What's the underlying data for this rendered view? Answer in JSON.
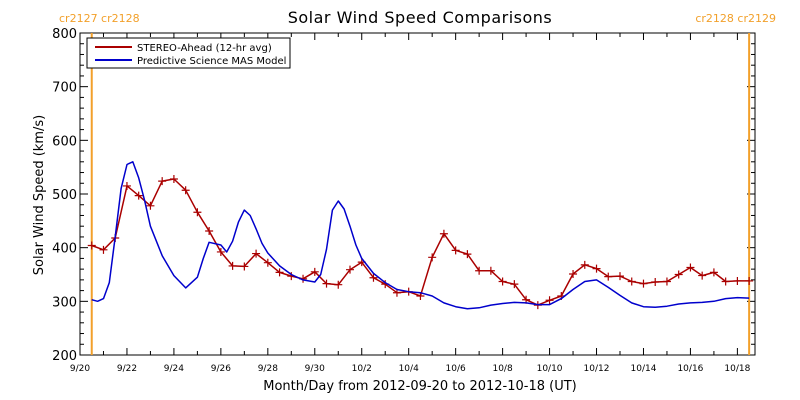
{
  "chart_data": {
    "type": "line",
    "title": "Solar Wind Speed Comparisons",
    "xlabel": "Month/Day from 2012-09-20 to 2012-10-18 (UT)",
    "ylabel": "Solar Wind Speed (km/s)",
    "xlim": [
      "2012-09-20",
      "2012-10-18 18:00"
    ],
    "ylim": [
      200,
      800
    ],
    "y_ticks": [
      "200",
      "300",
      "400",
      "500",
      "600",
      "700",
      "800"
    ],
    "x_ticks": [
      {
        "date": "2012-09-20",
        "label": "9/20"
      },
      {
        "date": "2012-09-22",
        "label": "9/22"
      },
      {
        "date": "2012-09-24",
        "label": "9/24"
      },
      {
        "date": "2012-09-26",
        "label": "9/26"
      },
      {
        "date": "2012-09-28",
        "label": "9/28"
      },
      {
        "date": "2012-09-30",
        "label": "9/30"
      },
      {
        "date": "2012-10-02",
        "label": "10/2"
      },
      {
        "date": "2012-10-04",
        "label": "10/4"
      },
      {
        "date": "2012-10-06",
        "label": "10/6"
      },
      {
        "date": "2012-10-08",
        "label": "10/8"
      },
      {
        "date": "2012-10-10",
        "label": "10/10"
      },
      {
        "date": "2012-10-12",
        "label": "10/12"
      },
      {
        "date": "2012-10-14",
        "label": "10/14"
      },
      {
        "date": "2012-10-16",
        "label": "10/16"
      },
      {
        "date": "2012-10-18",
        "label": "10/18"
      }
    ],
    "legend_position": "top-left",
    "carrington_markers": [
      {
        "date": "2012-09-20 12:00",
        "label": "cr2127 cr2128",
        "side": "left"
      },
      {
        "date": "2012-10-18 12:00",
        "label": "cr2128 cr2129",
        "side": "right"
      }
    ],
    "series": [
      {
        "name": "STEREO-Ahead (12-hr avg)",
        "color": "#aa0000",
        "markers": true,
        "x": [
          "2012-09-20 12:00",
          "2012-09-21 00:00",
          "2012-09-21 12:00",
          "2012-09-22 00:00",
          "2012-09-22 12:00",
          "2012-09-23 00:00",
          "2012-09-23 12:00",
          "2012-09-24 00:00",
          "2012-09-24 12:00",
          "2012-09-25 00:00",
          "2012-09-25 12:00",
          "2012-09-26 00:00",
          "2012-09-26 12:00",
          "2012-09-27 00:00",
          "2012-09-27 12:00",
          "2012-09-28 00:00",
          "2012-09-28 12:00",
          "2012-09-29 00:00",
          "2012-09-29 12:00",
          "2012-09-30 00:00",
          "2012-09-30 12:00",
          "2012-10-01 00:00",
          "2012-10-01 12:00",
          "2012-10-02 00:00",
          "2012-10-02 12:00",
          "2012-10-03 00:00",
          "2012-10-03 12:00",
          "2012-10-04 00:00",
          "2012-10-04 12:00",
          "2012-10-05 00:00",
          "2012-10-05 12:00",
          "2012-10-06 00:00",
          "2012-10-06 12:00",
          "2012-10-07 00:00",
          "2012-10-07 12:00",
          "2012-10-08 00:00",
          "2012-10-08 12:00",
          "2012-10-09 00:00",
          "2012-10-09 12:00",
          "2012-10-10 00:00",
          "2012-10-10 12:00",
          "2012-10-11 00:00",
          "2012-10-11 12:00",
          "2012-10-12 00:00",
          "2012-10-12 12:00",
          "2012-10-13 00:00",
          "2012-10-13 12:00",
          "2012-10-14 00:00",
          "2012-10-14 12:00",
          "2012-10-15 00:00",
          "2012-10-15 12:00",
          "2012-10-16 00:00",
          "2012-10-16 12:00",
          "2012-10-17 00:00",
          "2012-10-17 12:00",
          "2012-10-18 00:00",
          "2012-10-18 12:00"
        ],
        "y": [
          404,
          396,
          418,
          515,
          497,
          478,
          524,
          528,
          507,
          466,
          431,
          392,
          366,
          365,
          389,
          372,
          354,
          347,
          342,
          355,
          333,
          331,
          359,
          373,
          344,
          332,
          316,
          318,
          310,
          382,
          426,
          395,
          388,
          357,
          357,
          337,
          332,
          303,
          293,
          302,
          310,
          351,
          368,
          361,
          346,
          347,
          337,
          333,
          336,
          337,
          350,
          363,
          348,
          354,
          337,
          338,
          338
        ]
      },
      {
        "name": "Predictive Science MAS Model",
        "color": "#0000cc",
        "markers": false,
        "x": [
          "2012-09-20 12:00",
          "2012-09-20 18:00",
          "2012-09-21 00:00",
          "2012-09-21 06:00",
          "2012-09-21 12:00",
          "2012-09-21 18:00",
          "2012-09-22 00:00",
          "2012-09-22 06:00",
          "2012-09-22 12:00",
          "2012-09-22 18:00",
          "2012-09-23 00:00",
          "2012-09-23 12:00",
          "2012-09-24 00:00",
          "2012-09-24 12:00",
          "2012-09-25 00:00",
          "2012-09-25 06:00",
          "2012-09-25 12:00",
          "2012-09-26 00:00",
          "2012-09-26 06:00",
          "2012-09-26 12:00",
          "2012-09-26 18:00",
          "2012-09-27 00:00",
          "2012-09-27 06:00",
          "2012-09-27 12:00",
          "2012-09-27 18:00",
          "2012-09-28 00:00",
          "2012-09-28 12:00",
          "2012-09-29 00:00",
          "2012-09-29 12:00",
          "2012-09-30 00:00",
          "2012-09-30 06:00",
          "2012-09-30 12:00",
          "2012-09-30 18:00",
          "2012-10-01 00:00",
          "2012-10-01 06:00",
          "2012-10-01 12:00",
          "2012-10-01 18:00",
          "2012-10-02 00:00",
          "2012-10-02 12:00",
          "2012-10-03 00:00",
          "2012-10-03 12:00",
          "2012-10-04 00:00",
          "2012-10-04 12:00",
          "2012-10-05 00:00",
          "2012-10-05 12:00",
          "2012-10-06 00:00",
          "2012-10-06 12:00",
          "2012-10-07 00:00",
          "2012-10-07 12:00",
          "2012-10-08 00:00",
          "2012-10-08 12:00",
          "2012-10-09 00:00",
          "2012-10-09 12:00",
          "2012-10-10 00:00",
          "2012-10-10 12:00",
          "2012-10-11 00:00",
          "2012-10-11 12:00",
          "2012-10-12 00:00",
          "2012-10-12 12:00",
          "2012-10-13 00:00",
          "2012-10-13 12:00",
          "2012-10-14 00:00",
          "2012-10-14 12:00",
          "2012-10-15 00:00",
          "2012-10-15 12:00",
          "2012-10-16 00:00",
          "2012-10-16 12:00",
          "2012-10-17 00:00",
          "2012-10-17 12:00",
          "2012-10-18 00:00",
          "2012-10-18 12:00"
        ],
        "y": [
          303,
          300,
          305,
          335,
          420,
          510,
          555,
          560,
          530,
          488,
          440,
          385,
          348,
          325,
          345,
          380,
          410,
          405,
          392,
          412,
          448,
          470,
          460,
          435,
          408,
          390,
          366,
          350,
          340,
          336,
          350,
          397,
          470,
          487,
          472,
          440,
          405,
          380,
          352,
          335,
          322,
          318,
          316,
          310,
          297,
          290,
          286,
          288,
          293,
          296,
          298,
          297,
          294,
          294,
          305,
          322,
          337,
          340,
          326,
          311,
          297,
          290,
          289,
          291,
          295,
          297,
          298,
          300,
          305,
          307,
          306
        ]
      }
    ]
  }
}
